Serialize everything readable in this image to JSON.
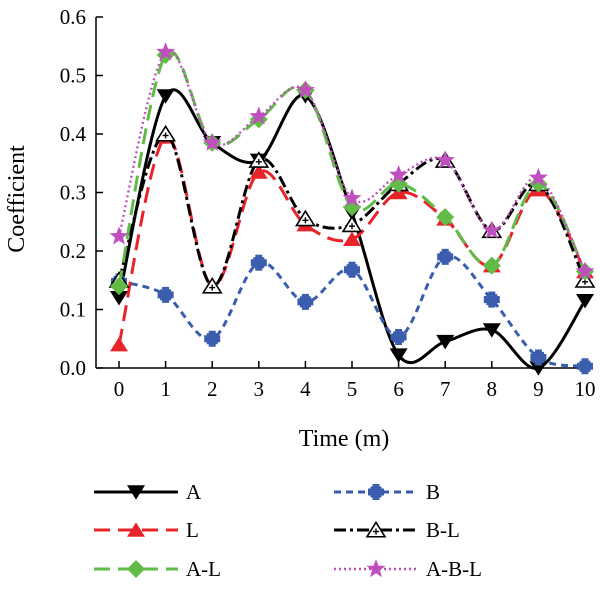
{
  "chart_data": {
    "type": "line",
    "title": "",
    "xlabel": "Time (m)",
    "ylabel": "Coefficient",
    "xlim": [
      0,
      10
    ],
    "ylim": [
      0,
      0.6
    ],
    "x": [
      0,
      1,
      2,
      3,
      4,
      5,
      6,
      7,
      8,
      9,
      10
    ],
    "x_ticks": [
      "0",
      "1",
      "2",
      "3",
      "4",
      "5",
      "6",
      "7",
      "8",
      "9",
      "10"
    ],
    "y_ticks": [
      "0.0",
      "0.1",
      "0.2",
      "0.3",
      "0.4",
      "0.5",
      "0.6"
    ],
    "grid": false,
    "legend_position": "bottom",
    "series": [
      {
        "name": "A",
        "color": "#000000",
        "dash": "solid",
        "marker": "triangle-down",
        "values": [
          0.12,
          0.465,
          0.385,
          0.355,
          0.465,
          0.265,
          0.022,
          0.045,
          0.065,
          0.0,
          0.115
        ]
      },
      {
        "name": "B",
        "color": "#3a5dae",
        "dash": "dashed",
        "marker": "plus-square",
        "values": [
          0.148,
          0.125,
          0.05,
          0.18,
          0.113,
          0.168,
          0.053,
          0.19,
          0.117,
          0.018,
          0.003
        ]
      },
      {
        "name": "L",
        "color": "#e8232a",
        "dash": "long-dash",
        "marker": "triangle-up",
        "values": [
          0.04,
          0.395,
          0.14,
          0.335,
          0.245,
          0.22,
          0.3,
          0.255,
          0.175,
          0.305,
          0.165
        ]
      },
      {
        "name": "B-L",
        "color": "#000000",
        "dash": "dash-dot",
        "marker": "open-triangle",
        "values": [
          0.15,
          0.4,
          0.14,
          0.355,
          0.255,
          0.245,
          0.315,
          0.355,
          0.235,
          0.315,
          0.15
        ]
      },
      {
        "name": "A-L",
        "color": "#62bb47",
        "dash": "long-dash",
        "marker": "diamond",
        "values": [
          0.14,
          0.535,
          0.385,
          0.425,
          0.475,
          0.275,
          0.315,
          0.258,
          0.175,
          0.315,
          0.165
        ]
      },
      {
        "name": "A-B-L",
        "color": "#c04fc0",
        "dash": "dotted",
        "marker": "star",
        "values": [
          0.225,
          0.54,
          0.385,
          0.43,
          0.475,
          0.29,
          0.33,
          0.355,
          0.235,
          0.325,
          0.165
        ]
      }
    ]
  }
}
